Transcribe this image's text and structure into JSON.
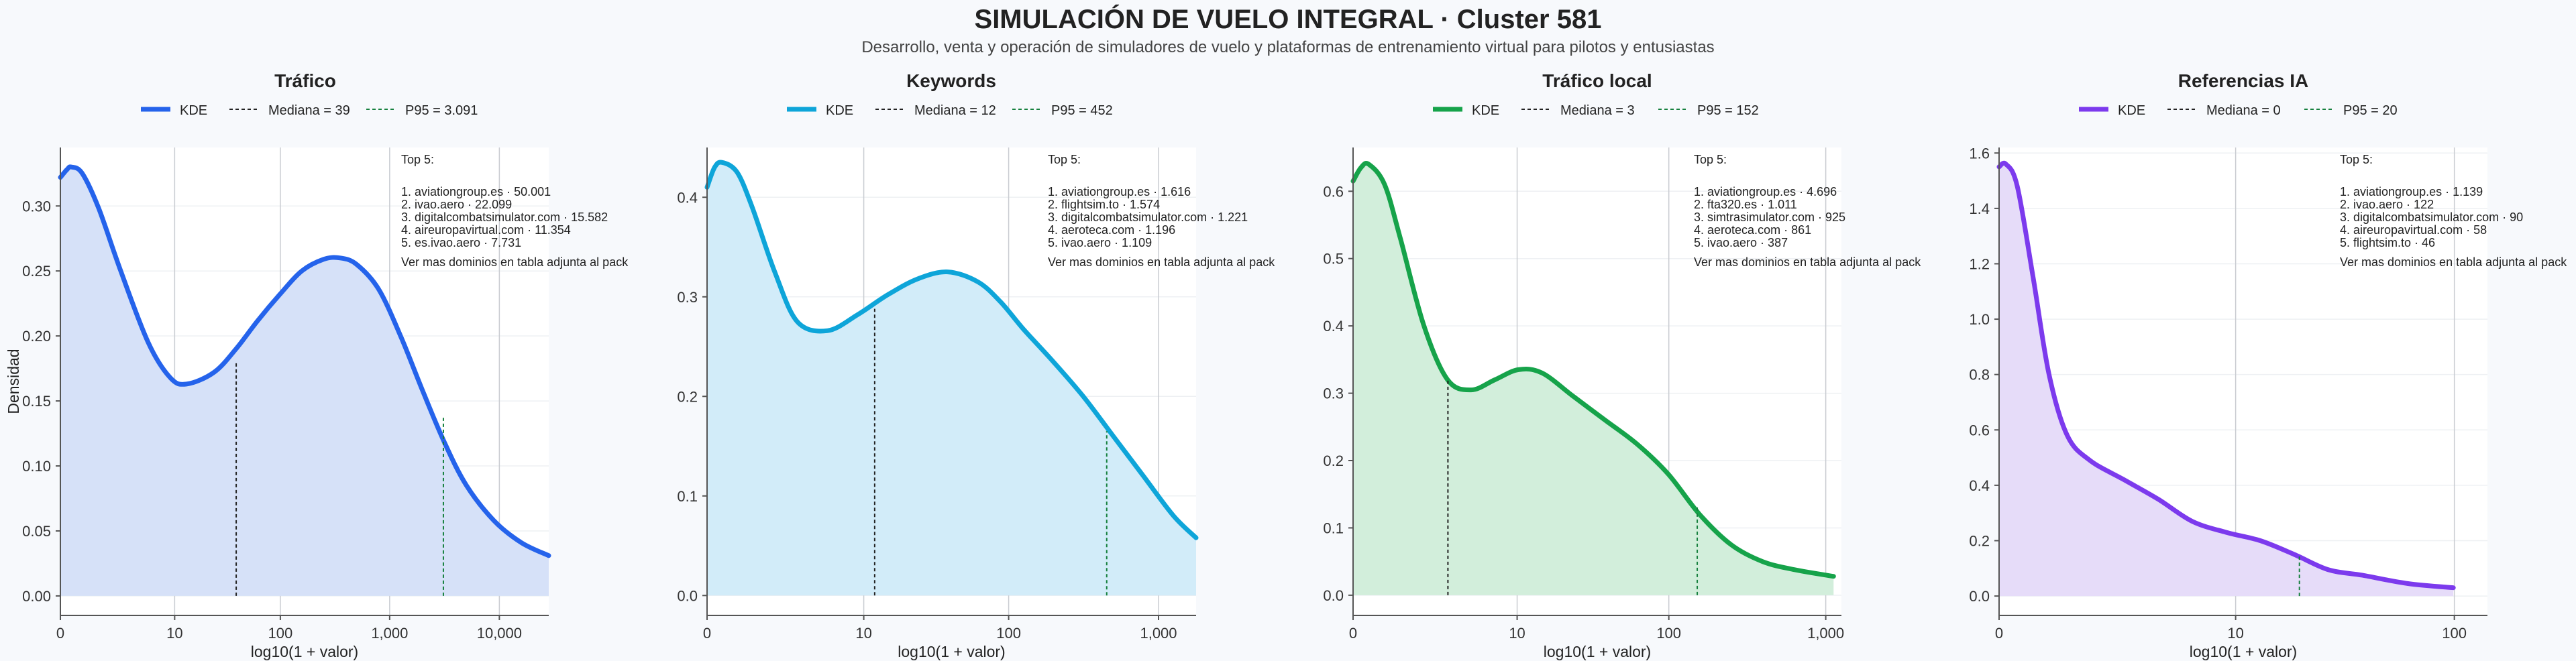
{
  "title": "SIMULACIÓN DE VUELO INTEGRAL · Cluster 581",
  "subtitle": "Desarrollo, venta y operación de simuladores de vuelo y plataformas de entrenamiento virtual para pilotos y entusiastas",
  "chart_data": [
    {
      "type": "area",
      "title": "Tráfico",
      "color": "#2563eb",
      "fill": "#d6e1f8",
      "xlabel": "log10(1 + valor)",
      "ylabel": "Densidad",
      "xlim": [
        0,
        4.45
      ],
      "ylim": [
        -0.015,
        0.345
      ],
      "xticks": [
        {
          "v": 0,
          "label": "0"
        },
        {
          "v": 1.0414,
          "label": "10"
        },
        {
          "v": 2.0043,
          "label": "100"
        },
        {
          "v": 3.0004,
          "label": "1,000"
        },
        {
          "v": 4.0,
          "label": "10,000"
        }
      ],
      "yticks": [
        {
          "v": 0,
          "label": "0.00"
        },
        {
          "v": 0.05,
          "label": "0.05"
        },
        {
          "v": 0.1,
          "label": "0.10"
        },
        {
          "v": 0.15,
          "label": "0.15"
        },
        {
          "v": 0.2,
          "label": "0.20"
        },
        {
          "v": 0.25,
          "label": "0.25"
        },
        {
          "v": 0.3,
          "label": "0.30"
        }
      ],
      "kde": {
        "x": [
          0,
          0.06,
          0.1,
          0.2,
          0.35,
          0.55,
          0.8,
          1.0,
          1.15,
          1.4,
          1.6,
          1.8,
          2.0,
          2.2,
          2.4,
          2.55,
          2.7,
          2.9,
          3.1,
          3.3,
          3.5,
          3.7,
          3.95,
          4.2,
          4.45
        ],
        "y": [
          0.322,
          0.328,
          0.33,
          0.325,
          0.298,
          0.25,
          0.195,
          0.168,
          0.163,
          0.172,
          0.19,
          0.212,
          0.232,
          0.25,
          0.259,
          0.26,
          0.255,
          0.236,
          0.2,
          0.158,
          0.118,
          0.085,
          0.058,
          0.041,
          0.031
        ]
      },
      "median": {
        "x": 1.6021,
        "y": 0.18
      },
      "p95": {
        "x": 3.49,
        "y": 0.137
      },
      "legend": {
        "kde": "KDE",
        "median": "Mediana = 39",
        "p95": "P95 = 3.091"
      },
      "top5_title": "Top 5:",
      "top5": [
        "1. aviationgroup.es · 50.001",
        "2. ivao.aero · 22.099",
        "3. digitalcombatsimulator.com · 15.582",
        "4. aireuropavirtual.com · 11.354",
        "5. es.ivao.aero · 7.731"
      ],
      "note": "Ver mas dominios en tabla adjunta al pack"
    },
    {
      "type": "area",
      "title": "Keywords",
      "color": "#0ea5d9",
      "fill": "#d2ecf9",
      "xlabel": "log10(1 + valor)",
      "ylabel": "",
      "xlim": [
        0,
        3.25
      ],
      "ylim": [
        -0.02,
        0.45
      ],
      "xticks": [
        {
          "v": 0,
          "label": "0"
        },
        {
          "v": 1.0414,
          "label": "10"
        },
        {
          "v": 2.0043,
          "label": "100"
        },
        {
          "v": 3.0004,
          "label": "1,000"
        }
      ],
      "yticks": [
        {
          "v": 0,
          "label": "0.0"
        },
        {
          "v": 0.1,
          "label": "0.1"
        },
        {
          "v": 0.2,
          "label": "0.2"
        },
        {
          "v": 0.3,
          "label": "0.3"
        },
        {
          "v": 0.4,
          "label": "0.4"
        }
      ],
      "kde": {
        "x": [
          0,
          0.05,
          0.1,
          0.2,
          0.3,
          0.45,
          0.6,
          0.8,
          1.0,
          1.2,
          1.4,
          1.6,
          1.8,
          1.95,
          2.1,
          2.3,
          2.5,
          2.7,
          2.9,
          3.1,
          3.25
        ],
        "y": [
          0.41,
          0.43,
          0.435,
          0.425,
          0.39,
          0.325,
          0.275,
          0.266,
          0.282,
          0.302,
          0.318,
          0.325,
          0.315,
          0.295,
          0.268,
          0.235,
          0.2,
          0.16,
          0.12,
          0.08,
          0.058
        ]
      },
      "median": {
        "x": 1.1139,
        "y": 0.288
      },
      "p95": {
        "x": 2.6561,
        "y": 0.165
      },
      "legend": {
        "kde": "KDE",
        "median": "Mediana = 12",
        "p95": "P95 = 452"
      },
      "top5_title": "Top 5:",
      "top5": [
        "1. aviationgroup.es · 1.616",
        "2. flightsim.to · 1.574",
        "3. digitalcombatsimulator.com · 1.221",
        "4. aeroteca.com · 1.196",
        "5. ivao.aero · 1.109"
      ],
      "note": "Ver mas dominios en tabla adjunta al pack"
    },
    {
      "type": "area",
      "title": "Tráfico local",
      "color": "#16a34a",
      "fill": "#d2eedb",
      "xlabel": "log10(1 + valor)",
      "ylabel": "",
      "xlim": [
        0,
        3.1
      ],
      "ylim": [
        -0.03,
        0.665
      ],
      "xticks": [
        {
          "v": 0,
          "label": "0"
        },
        {
          "v": 1.0414,
          "label": "10"
        },
        {
          "v": 2.0043,
          "label": "100"
        },
        {
          "v": 3.0004,
          "label": "1,000"
        }
      ],
      "yticks": [
        {
          "v": 0,
          "label": "0.0"
        },
        {
          "v": 0.1,
          "label": "0.1"
        },
        {
          "v": 0.2,
          "label": "0.2"
        },
        {
          "v": 0.3,
          "label": "0.3"
        },
        {
          "v": 0.4,
          "label": "0.4"
        },
        {
          "v": 0.5,
          "label": "0.5"
        },
        {
          "v": 0.6,
          "label": "0.6"
        }
      ],
      "kde": {
        "x": [
          0,
          0.05,
          0.1,
          0.2,
          0.3,
          0.45,
          0.6,
          0.75,
          0.9,
          1.05,
          1.2,
          1.4,
          1.6,
          1.8,
          2.0,
          2.2,
          2.4,
          2.6,
          2.8,
          3.05
        ],
        "y": [
          0.615,
          0.635,
          0.64,
          0.61,
          0.53,
          0.4,
          0.32,
          0.305,
          0.32,
          0.335,
          0.33,
          0.295,
          0.26,
          0.225,
          0.18,
          0.12,
          0.075,
          0.05,
          0.038,
          0.028
        ]
      },
      "median": {
        "x": 0.6021,
        "y": 0.32
      },
      "p95": {
        "x": 2.1847,
        "y": 0.132
      },
      "legend": {
        "kde": "KDE",
        "median": "Mediana = 3",
        "p95": "P95 = 152"
      },
      "top5_title": "Top 5:",
      "top5": [
        "1. aviationgroup.es · 4.696",
        "2. fta320.es · 1.011",
        "3. simtrasimulator.com · 925",
        "4. aeroteca.com · 861",
        "5. ivao.aero · 387"
      ],
      "note": "Ver mas dominios en tabla adjunta al pack"
    },
    {
      "type": "area",
      "title": "Referencias IA",
      "color": "#7c3aed",
      "fill": "#e6dcf9",
      "xlabel": "log10(1 + valor)",
      "ylabel": "",
      "xlim": [
        0,
        2.15
      ],
      "ylim": [
        -0.07,
        1.62
      ],
      "xticks": [
        {
          "v": 0,
          "label": "0"
        },
        {
          "v": 1.0414,
          "label": "10"
        },
        {
          "v": 2.0043,
          "label": "100"
        }
      ],
      "yticks": [
        {
          "v": 0,
          "label": "0.0"
        },
        {
          "v": 0.2,
          "label": "0.2"
        },
        {
          "v": 0.4,
          "label": "0.4"
        },
        {
          "v": 0.6,
          "label": "0.6"
        },
        {
          "v": 0.8,
          "label": "0.8"
        },
        {
          "v": 1.0,
          "label": "1.0"
        },
        {
          "v": 1.2,
          "label": "1.2"
        },
        {
          "v": 1.4,
          "label": "1.4"
        },
        {
          "v": 1.6,
          "label": "1.6"
        }
      ],
      "kde": {
        "x": [
          0,
          0.03,
          0.08,
          0.15,
          0.22,
          0.3,
          0.4,
          0.55,
          0.7,
          0.85,
          1.0,
          1.15,
          1.3,
          1.45,
          1.6,
          1.8,
          2.0
        ],
        "y": [
          1.55,
          1.56,
          1.48,
          1.15,
          0.8,
          0.58,
          0.49,
          0.42,
          0.35,
          0.27,
          0.23,
          0.2,
          0.15,
          0.095,
          0.075,
          0.045,
          0.03
        ]
      },
      "median": {
        "x": 0.0,
        "y": 1.55
      },
      "p95": {
        "x": 1.3222,
        "y": 0.15
      },
      "legend": {
        "kde": "KDE",
        "median": "Mediana = 0",
        "p95": "P95 = 20"
      },
      "top5_title": "Top 5:",
      "top5": [
        "1. aviationgroup.es · 1.139",
        "2. ivao.aero · 122",
        "3. digitalcombatsimulator.com · 90",
        "4. aireuropavirtual.com · 58",
        "5. flightsim.to · 46"
      ],
      "note": "Ver mas dominios en tabla adjunta al pack"
    }
  ]
}
